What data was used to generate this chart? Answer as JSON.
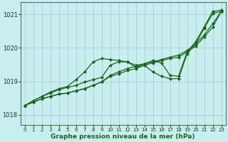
{
  "xlabel": "Graphe pression niveau de la mer (hPa)",
  "bg_color": "#c8eef0",
  "grid_color": "#a0c8d0",
  "line_color": "#1a6618",
  "xlim": [
    -0.5,
    23.5
  ],
  "ylim": [
    1017.7,
    1021.35
  ],
  "yticks": [
    1018,
    1019,
    1020,
    1021
  ],
  "xticks": [
    0,
    1,
    2,
    3,
    4,
    5,
    6,
    7,
    8,
    9,
    10,
    11,
    12,
    13,
    14,
    15,
    16,
    17,
    18,
    19,
    20,
    21,
    22,
    23
  ],
  "series": [
    [
      1018.28,
      1018.42,
      1018.55,
      1018.68,
      1018.78,
      1018.85,
      1019.05,
      1019.28,
      1019.58,
      1019.68,
      1019.65,
      1019.62,
      1019.58,
      1019.48,
      1019.52,
      1019.62,
      1019.55,
      1019.18,
      1019.15,
      1019.88,
      1020.18,
      1020.62,
      1021.08,
      1021.12
    ],
    [
      1018.28,
      1018.42,
      1018.55,
      1018.65,
      1018.75,
      1018.82,
      1018.88,
      1018.98,
      1019.05,
      1019.12,
      1019.48,
      1019.58,
      1019.58,
      1019.42,
      1019.48,
      1019.28,
      1019.15,
      1019.08,
      1019.08,
      1019.82,
      1020.12,
      1020.58,
      1021.02,
      1021.08
    ],
    [
      1018.28,
      1018.38,
      1018.48,
      1018.55,
      1018.62,
      1018.65,
      1018.72,
      1018.78,
      1018.88,
      1018.98,
      1019.15,
      1019.22,
      1019.32,
      1019.38,
      1019.48,
      1019.55,
      1019.62,
      1019.68,
      1019.72,
      1019.88,
      1020.05,
      1020.32,
      1020.62,
      1021.08
    ],
    [
      1018.28,
      1018.38,
      1018.48,
      1018.55,
      1018.62,
      1018.65,
      1018.72,
      1018.78,
      1018.88,
      1018.98,
      1019.18,
      1019.28,
      1019.38,
      1019.45,
      1019.52,
      1019.58,
      1019.65,
      1019.72,
      1019.78,
      1019.92,
      1020.12,
      1020.38,
      1020.72,
      1021.08
    ]
  ]
}
